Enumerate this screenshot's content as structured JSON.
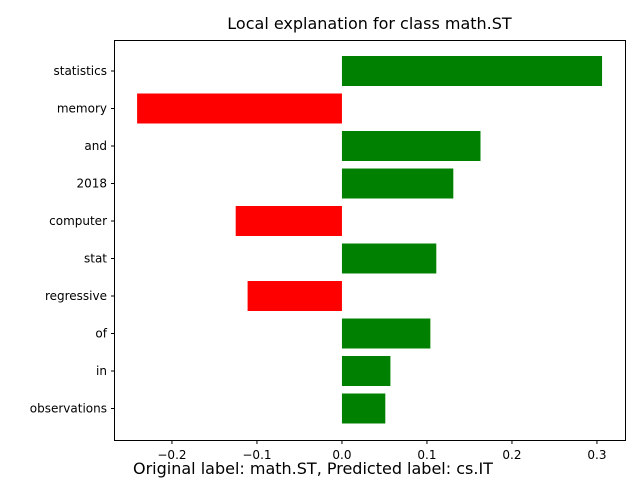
{
  "chart_data": {
    "type": "bar",
    "orientation": "horizontal",
    "title": "Local explanation for class math.ST",
    "categories": [
      "statistics",
      "memory",
      "and",
      "2018",
      "computer",
      "stat",
      "regressive",
      "of",
      "in",
      "observations"
    ],
    "values": [
      0.306,
      -0.241,
      0.163,
      0.131,
      -0.125,
      0.111,
      -0.111,
      0.104,
      0.057,
      0.051
    ],
    "xlim": [
      -0.267,
      0.333
    ],
    "xticks": [
      -0.2,
      -0.1,
      0.0,
      0.1,
      0.2,
      0.3
    ],
    "xtick_labels": [
      "−0.2",
      "−0.1",
      "0.0",
      "0.1",
      "0.2",
      "0.3"
    ],
    "positive_color": "#008000",
    "negative_color": "#ff0000",
    "grid": false
  },
  "caption": "Original label: math.ST, Predicted label: cs.IT"
}
